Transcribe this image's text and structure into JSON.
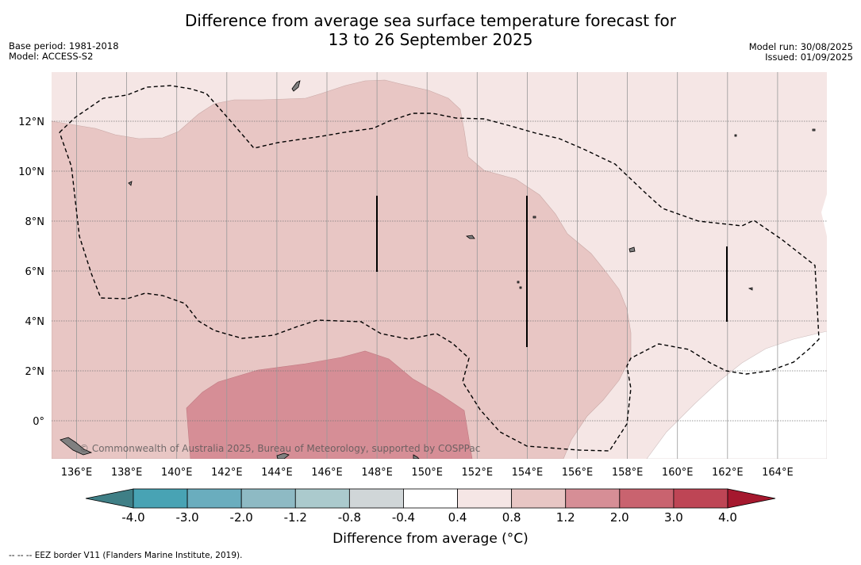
{
  "title_line1": "Difference from average sea surface temperature forecast for",
  "title_line2": "13 to 26 September 2025",
  "meta_left": {
    "base_period": "Base period: 1981-2018",
    "model": "Model: ACCESS-S2"
  },
  "meta_right": {
    "model_run": "Model run: 30/08/2025",
    "issued": "Issued: 01/09/2025"
  },
  "map": {
    "lon_ticks": [
      "136°E",
      "138°E",
      "140°E",
      "142°E",
      "144°E",
      "146°E",
      "148°E",
      "150°E",
      "152°E",
      "154°E",
      "156°E",
      "158°E",
      "160°E",
      "162°E",
      "164°E"
    ],
    "lat_ticks": [
      "12°N",
      "10°N",
      "8°N",
      "6°N",
      "4°N",
      "2°N",
      "0°"
    ],
    "copyright": "© Commonwealth of Australia 2025, Bureau of Meteorology, supported by COSPPac",
    "colors": {
      "band_0_4_0_8": "#f5e6e5",
      "band_0_8_1_2": "#e8c6c4",
      "band_1_2_2_0": "#d68e96",
      "land": "#808080"
    }
  },
  "colorbar": {
    "ticks": [
      "-4.0",
      "-3.0",
      "-2.0",
      "-1.2",
      "-0.8",
      "-0.4",
      "0.4",
      "0.8",
      "1.2",
      "2.0",
      "3.0",
      "4.0"
    ],
    "colors": [
      "#3f7f86",
      "#48a3b4",
      "#6aadbe",
      "#8ebac4",
      "#abcacd",
      "#d0d6d8",
      "#ffffff",
      "#f5e6e5",
      "#e8c6c4",
      "#d68e96",
      "#c9636f",
      "#be4555",
      "#a5182e"
    ],
    "label": "Difference from average (°C)"
  },
  "footer": "--  --  -- EEZ border V11 (Flanders Marine Institute, 2019)."
}
